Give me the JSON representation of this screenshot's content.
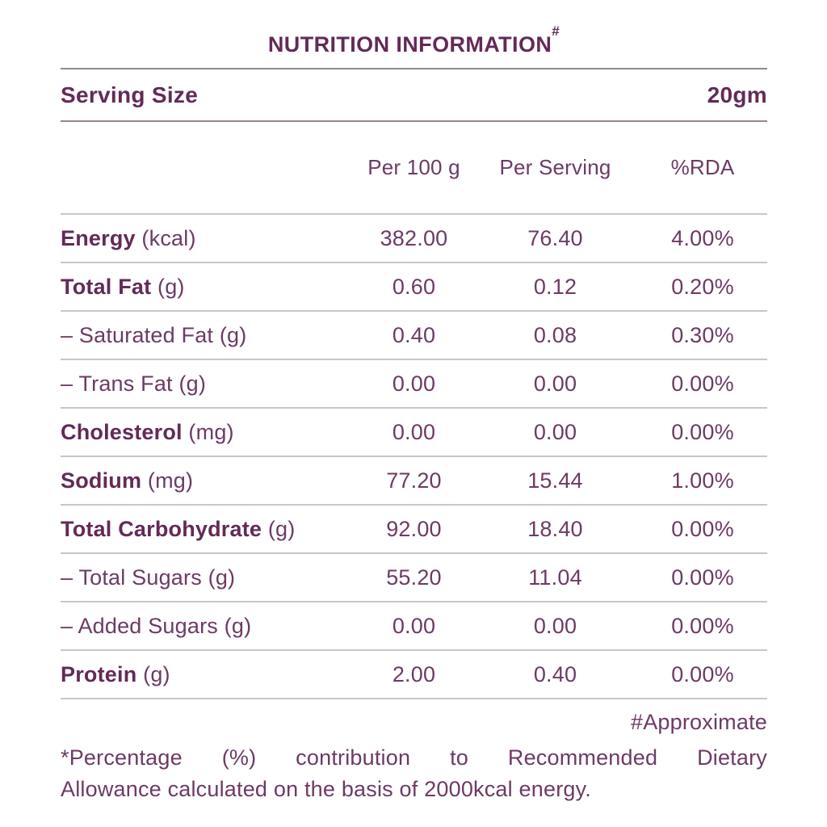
{
  "title": {
    "text": "NUTRITION INFORMATION",
    "superscript": "#"
  },
  "serving": {
    "label": "Serving Size",
    "value": "20gm"
  },
  "table": {
    "columns": [
      "Per 100 g",
      "Per Serving",
      "%RDA"
    ],
    "rows": [
      {
        "prefix": "",
        "name": "Energy",
        "unit": " (kcal)",
        "bold": true,
        "per_100g": "382.00",
        "per_serving": "76.40",
        "rda": "4.00%"
      },
      {
        "prefix": "",
        "name": "Total Fat",
        "unit": " (g)",
        "bold": true,
        "per_100g": "0.60",
        "per_serving": "0.12",
        "rda": "0.20%"
      },
      {
        "prefix": "– ",
        "name": "Saturated Fat",
        "unit": " (g)",
        "bold": false,
        "per_100g": "0.40",
        "per_serving": "0.08",
        "rda": "0.30%"
      },
      {
        "prefix": "– ",
        "name": "Trans Fat",
        "unit": " (g)",
        "bold": false,
        "per_100g": "0.00",
        "per_serving": "0.00",
        "rda": "0.00%"
      },
      {
        "prefix": "",
        "name": "Cholesterol",
        "unit": " (mg)",
        "bold": true,
        "per_100g": "0.00",
        "per_serving": "0.00",
        "rda": "0.00%"
      },
      {
        "prefix": "",
        "name": "Sodium",
        "unit": " (mg)",
        "bold": true,
        "per_100g": "77.20",
        "per_serving": "15.44",
        "rda": "1.00%"
      },
      {
        "prefix": "",
        "name": "Total Carbohydrate",
        "unit": " (g)",
        "bold": true,
        "per_100g": "92.00",
        "per_serving": "18.40",
        "rda": "0.00%"
      },
      {
        "prefix": "– ",
        "name": "Total Sugars",
        "unit": " (g)",
        "bold": false,
        "per_100g": "55.20",
        "per_serving": "11.04",
        "rda": "0.00%"
      },
      {
        "prefix": "– ",
        "name": "Added Sugars",
        "unit": " (g)",
        "bold": false,
        "per_100g": "0.00",
        "per_serving": "0.00",
        "rda": "0.00%"
      },
      {
        "prefix": "",
        "name": "Protein",
        "unit": " (g)",
        "bold": true,
        "per_100g": "2.00",
        "per_serving": "0.40",
        "rda": "0.00%"
      }
    ]
  },
  "footnotes": {
    "approximate": "#Approximate",
    "rda_note_lines": [
      "*Percentage (%) contribution to Recommended Dietary",
      "Allowance calculated on the basis of 2000kcal energy."
    ]
  },
  "colors": {
    "text": "#6d3a64",
    "text_bold": "#632a57",
    "divider_dark": "#9b8294",
    "divider_light": "#ccc4cb",
    "background": "#ffffff"
  }
}
